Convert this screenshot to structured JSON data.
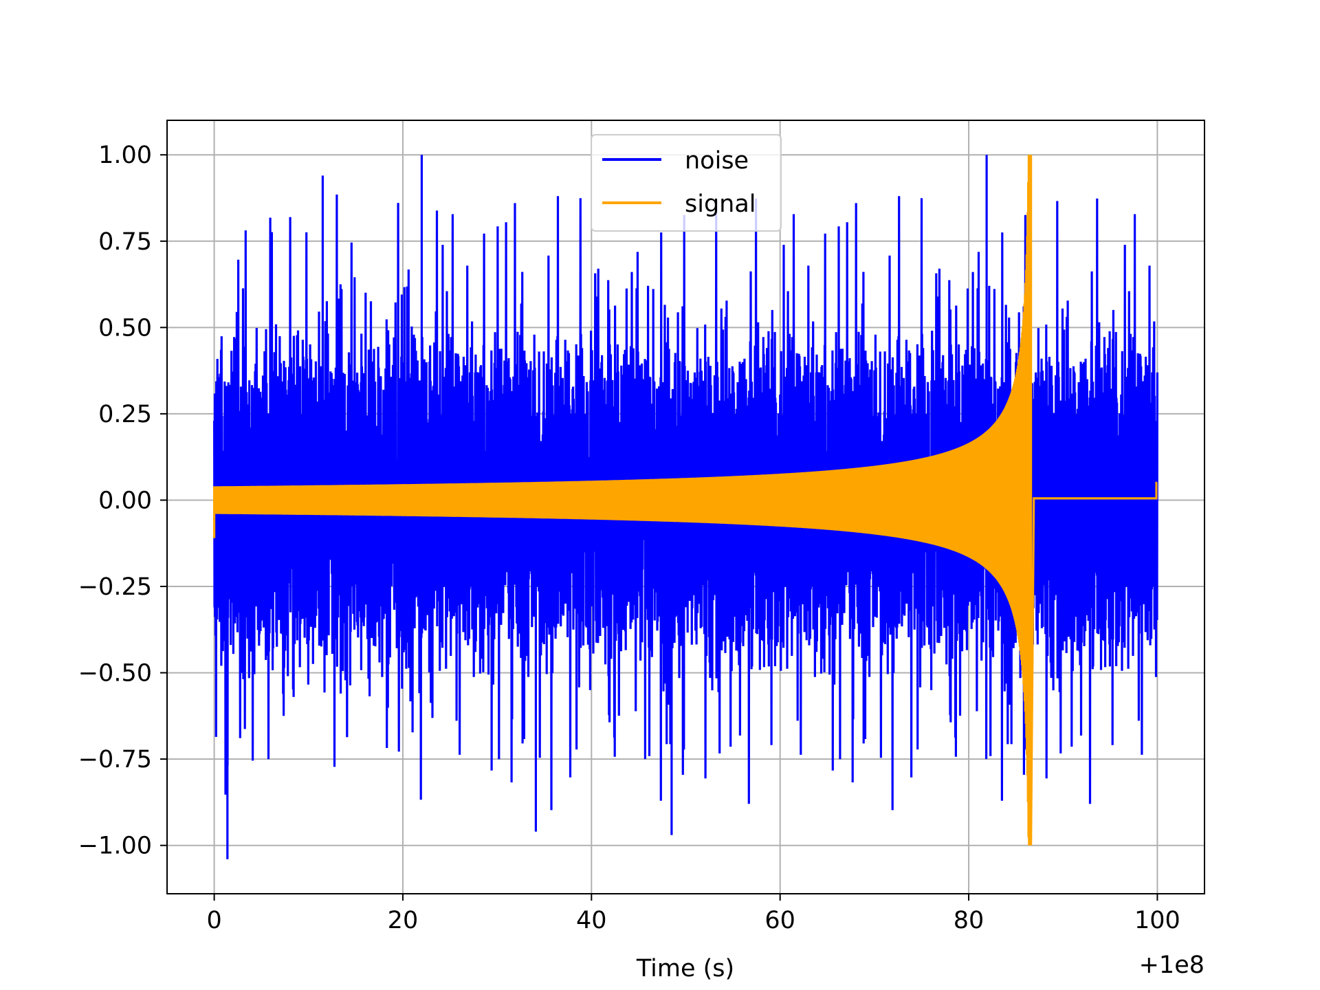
{
  "chart_data": {
    "type": "line",
    "xlabel": "Time (s)",
    "ylabel": "",
    "x_offset_label": "+1e8",
    "xlim": [
      -5,
      105
    ],
    "ylim": [
      -1.14,
      1.1
    ],
    "x_ticks": [
      0,
      20,
      40,
      60,
      80,
      100
    ],
    "x_tick_labels": [
      "0",
      "20",
      "40",
      "60",
      "80",
      "100"
    ],
    "y_ticks": [
      1.0,
      0.75,
      0.5,
      0.25,
      0.0,
      -0.25,
      -0.5,
      -0.75,
      -1.0
    ],
    "y_tick_labels": [
      "1.00",
      "0.75",
      "0.50",
      "0.25",
      "0.00",
      "−0.25",
      "−0.50",
      "−0.75",
      "−1.00"
    ],
    "grid": true,
    "legend_position": "top-center",
    "series": [
      {
        "name": "noise",
        "color": "#0000ff",
        "x_range": [
          0,
          100
        ],
        "min": -1.04,
        "max": 1.0,
        "description_values": {
          "typical_peak_range": [
            0.55,
            0.8
          ],
          "notable_peaks": [
            [
              1.4,
              -1.04
            ],
            [
              11.5,
              0.94
            ],
            [
              22.0,
              1.0
            ],
            [
              81.9,
              1.0
            ],
            [
              34.1,
              -0.96
            ],
            [
              48.5,
              -0.97
            ]
          ]
        }
      },
      {
        "name": "signal",
        "color": "#ffa500",
        "x_range": [
          0,
          100
        ],
        "chirp_start_amplitude": 0.04,
        "merger_time": 86.6,
        "merger_amplitude": 1.0,
        "post_merger_value": 0.005,
        "end_value": 0.05
      }
    ]
  }
}
